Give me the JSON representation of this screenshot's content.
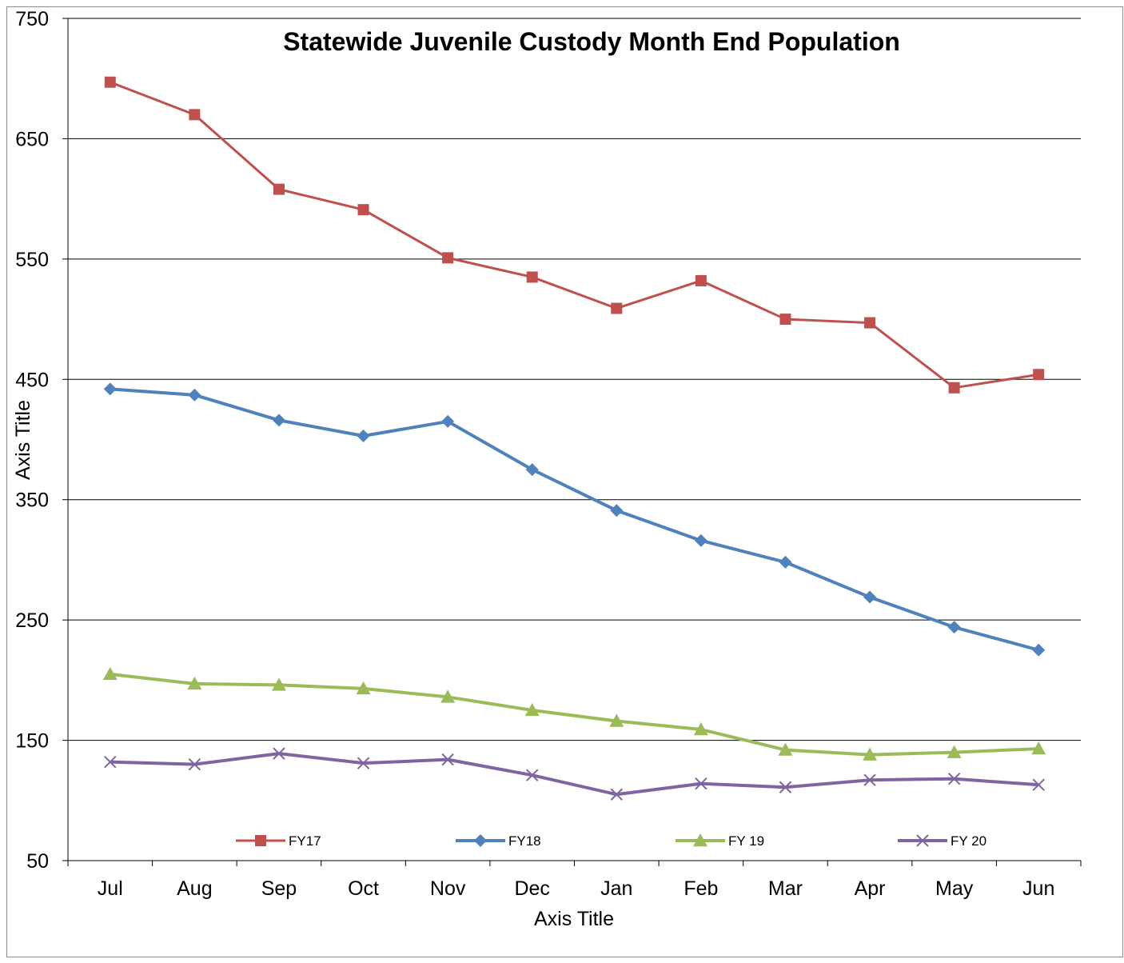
{
  "chart_data": {
    "type": "line",
    "title": "Statewide Juvenile Custody Month End Population",
    "xlabel": "Axis Title",
    "ylabel": "Axis Title",
    "categories": [
      "Jul",
      "Aug",
      "Sep",
      "Oct",
      "Nov",
      "Dec",
      "Jan",
      "Feb",
      "Mar",
      "Apr",
      "May",
      "Jun"
    ],
    "ylim": [
      50,
      750
    ],
    "yticks": [
      "50",
      "150",
      "250",
      "350",
      "450",
      "550",
      "650",
      "750"
    ],
    "grid": true,
    "legend_position": "bottom-inside",
    "series": [
      {
        "name": "FY17",
        "color": "#c0504d",
        "marker": "square",
        "line_width": 3,
        "values": [
          697,
          670,
          608,
          591,
          551,
          535,
          509,
          532,
          500,
          497,
          443,
          454
        ]
      },
      {
        "name": "FY18",
        "color": "#4f81bd",
        "marker": "diamond",
        "line_width": 4,
        "values": [
          442,
          437,
          416,
          403,
          415,
          375,
          341,
          316,
          298,
          269,
          244,
          225
        ]
      },
      {
        "name": "FY 19",
        "color": "#9bbb59",
        "marker": "triangle",
        "line_width": 4,
        "values": [
          205,
          197,
          196,
          193,
          186,
          175,
          166,
          159,
          142,
          138,
          140,
          143
        ]
      },
      {
        "name": "FY 20",
        "color": "#8064a2",
        "marker": "x",
        "line_width": 4,
        "values": [
          132,
          130,
          139,
          131,
          134,
          121,
          105,
          114,
          111,
          117,
          118,
          113
        ]
      }
    ]
  }
}
